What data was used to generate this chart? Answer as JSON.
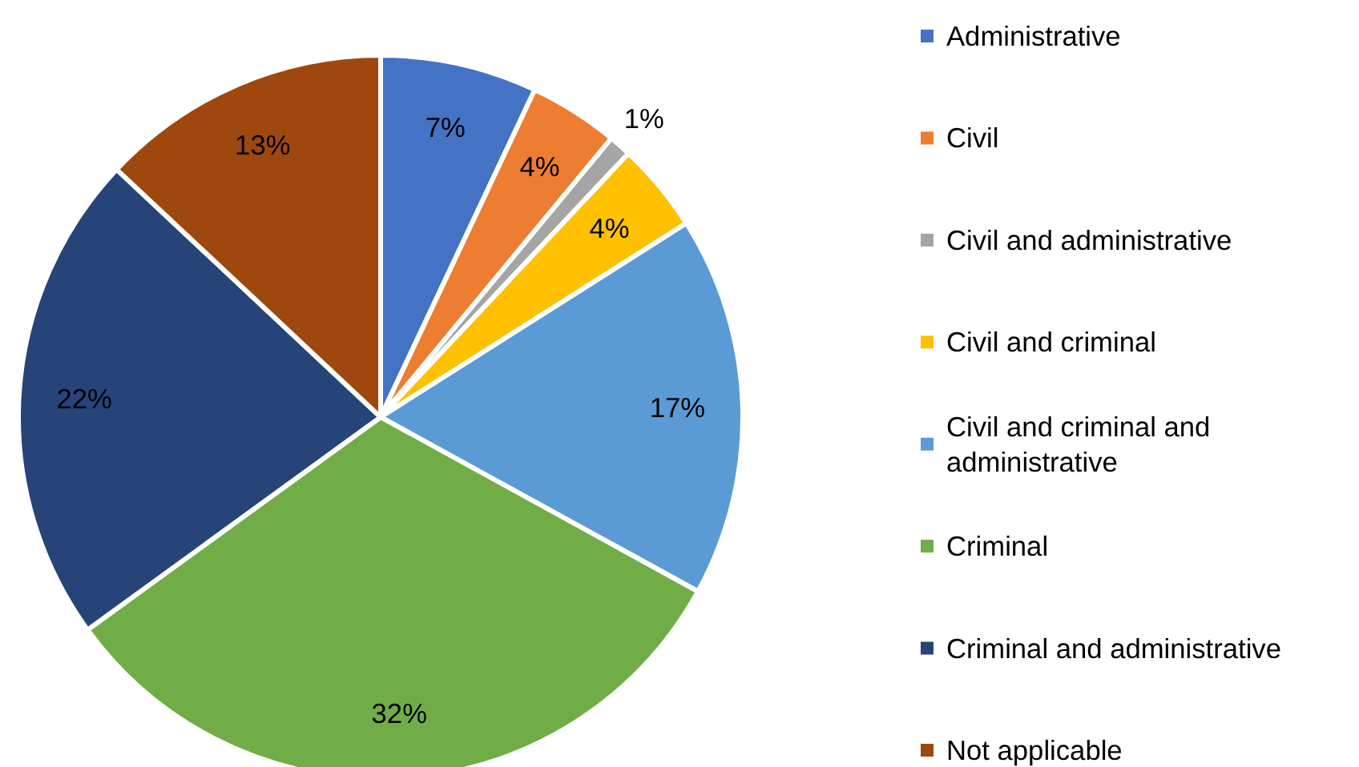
{
  "chart_data": {
    "type": "pie",
    "categories": [
      "Administrative",
      "Civil",
      "Civil and administrative",
      "Civil and criminal",
      "Civil and criminal and administrative",
      "Criminal",
      "Criminal and administrative",
      "Not applicable"
    ],
    "values": [
      7,
      4,
      1,
      4,
      17,
      32,
      22,
      13
    ],
    "colors": [
      "#4472c4",
      "#ed7d31",
      "#a5a5a5",
      "#ffc000",
      "#5b9bd5",
      "#70ad47",
      "#264478",
      "#9e480e"
    ],
    "value_labels": [
      "7%",
      "4%",
      "1%",
      "4%",
      "17%",
      "32%",
      "22%",
      "13%"
    ],
    "legend": "right"
  }
}
